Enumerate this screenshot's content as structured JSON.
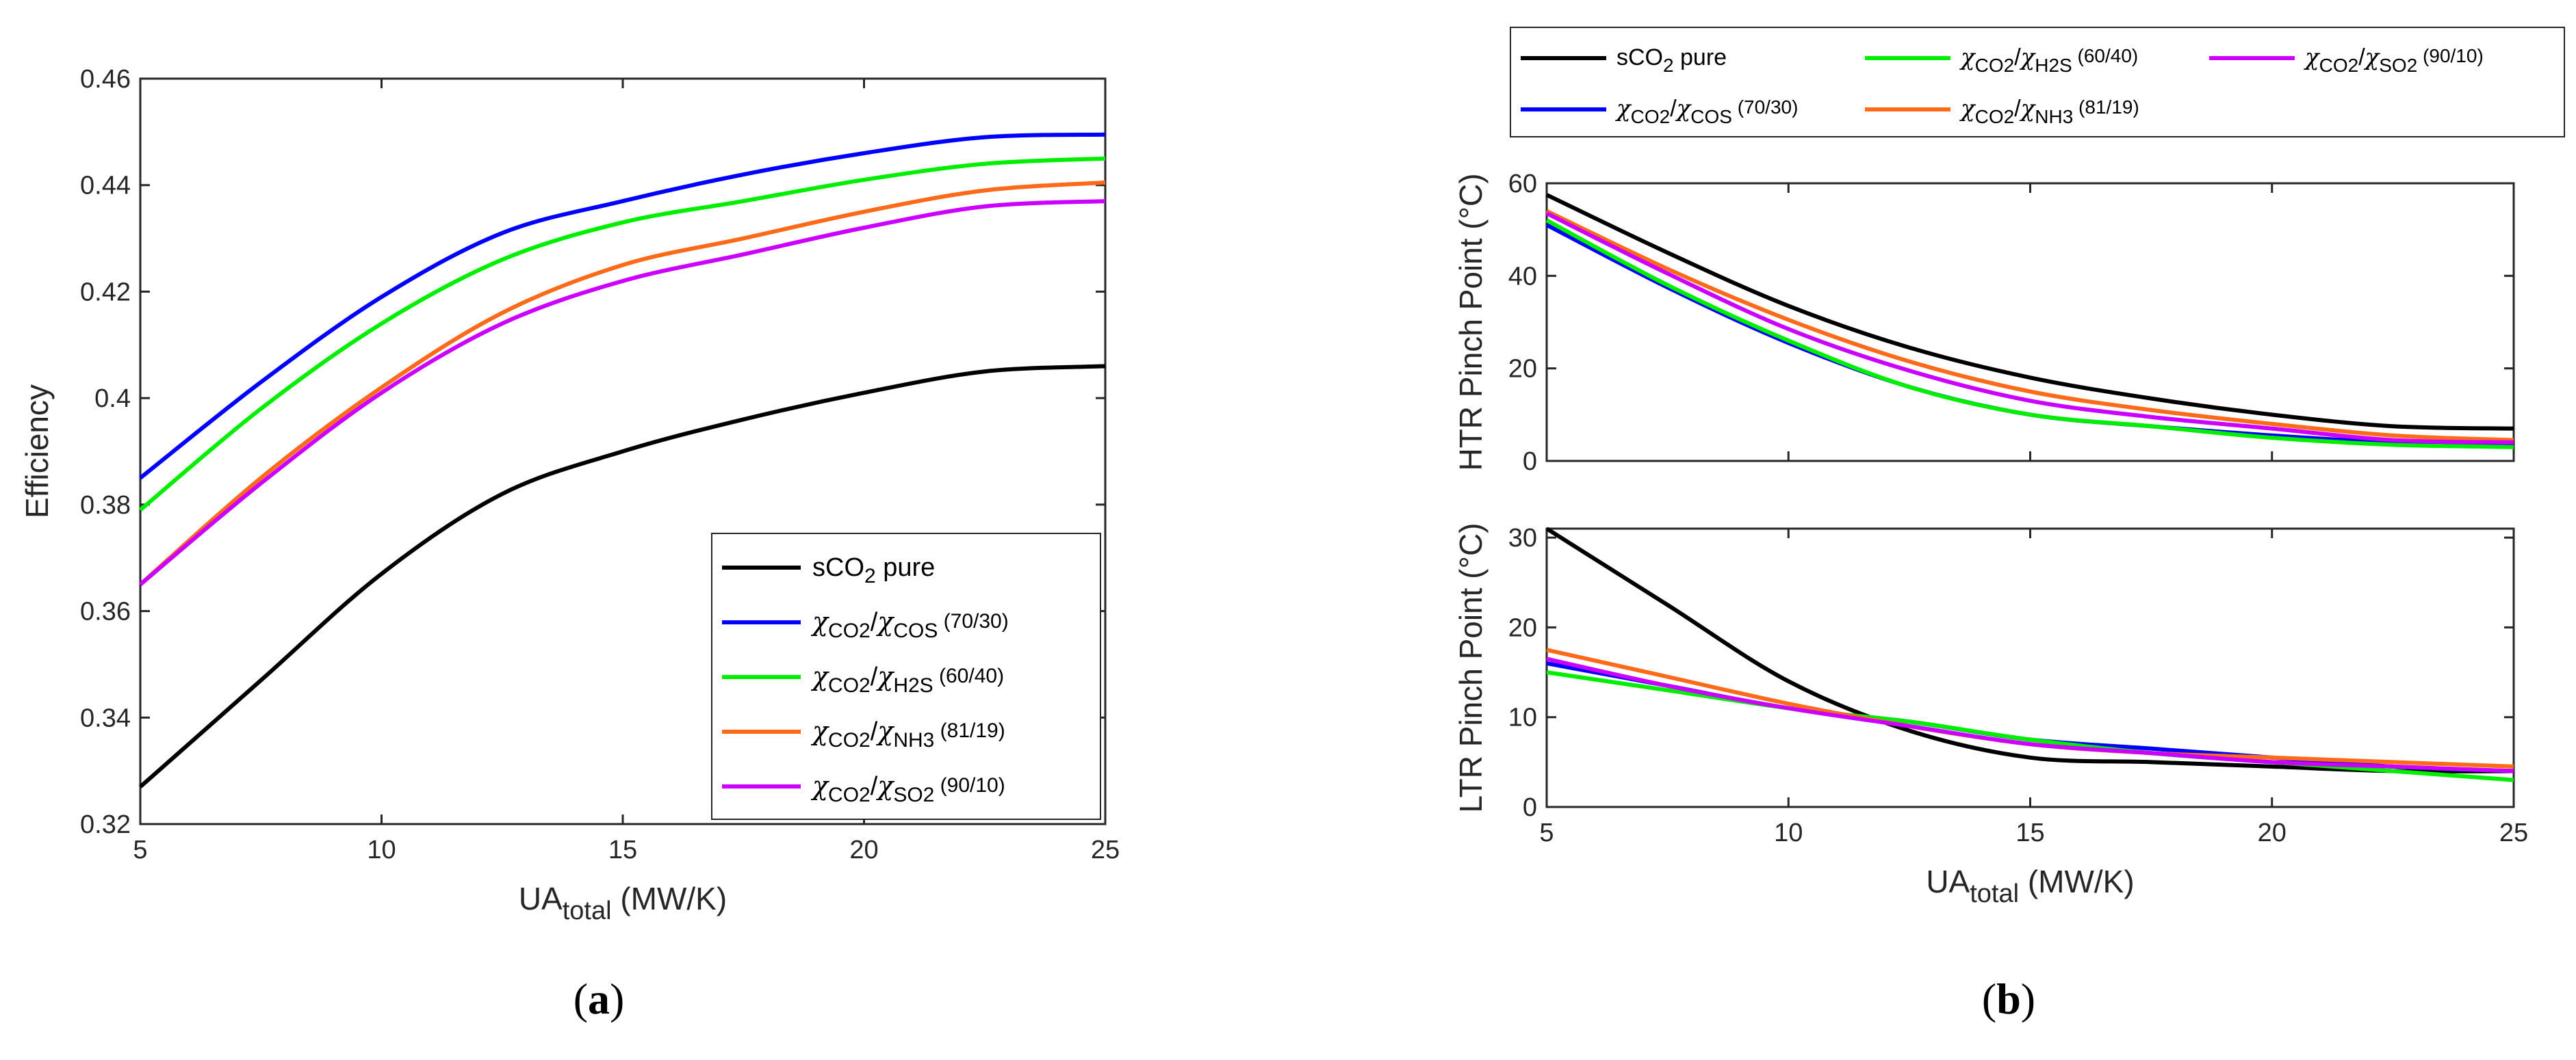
{
  "colors": {
    "sco2": "#000000",
    "cos": "#0000ff",
    "h2s": "#00ee00",
    "nh3": "#ff6a1a",
    "so2": "#cc00ff"
  },
  "chart_data": [
    {
      "id": "a",
      "type": "line",
      "panel_label": "a",
      "xlabel": {
        "main": "UA",
        "sub": "total",
        "unit": " (MW/K)"
      },
      "ylabel": "Efficiency",
      "xlim": [
        5,
        25
      ],
      "ylim": [
        0.32,
        0.46
      ],
      "xticks": [
        "5",
        "10",
        "15",
        "20",
        "25"
      ],
      "yticks": [
        "0.32",
        "0.34",
        "0.36",
        "0.38",
        "0.4",
        "0.42",
        "0.44",
        "0.46"
      ],
      "legend_position": "bottom-right",
      "x": [
        5,
        7.5,
        10,
        12.5,
        15,
        17.5,
        20,
        22.5,
        25
      ],
      "series": [
        {
          "key": "sco2",
          "values": [
            0.327,
            0.347,
            0.367,
            0.382,
            0.39,
            0.396,
            0.401,
            0.405,
            0.406
          ]
        },
        {
          "key": "cos",
          "values": [
            0.385,
            0.403,
            0.419,
            0.431,
            0.437,
            0.442,
            0.446,
            0.449,
            0.4495
          ]
        },
        {
          "key": "h2s",
          "values": [
            0.379,
            0.398,
            0.414,
            0.426,
            0.433,
            0.437,
            0.441,
            0.444,
            0.445
          ]
        },
        {
          "key": "nh3",
          "values": [
            0.365,
            0.385,
            0.402,
            0.416,
            0.425,
            0.43,
            0.435,
            0.439,
            0.4405
          ]
        },
        {
          "key": "so2",
          "values": [
            0.365,
            0.384,
            0.401,
            0.414,
            0.422,
            0.427,
            0.432,
            0.436,
            0.437
          ]
        }
      ]
    },
    {
      "id": "b_top",
      "type": "line",
      "ylabel": "HTR Pinch Point (°C)",
      "xlim": [
        5,
        25
      ],
      "ylim": [
        0,
        60
      ],
      "xticks": [
        "5",
        "10",
        "15",
        "20",
        "25"
      ],
      "yticks": [
        "0",
        "20",
        "40",
        "60"
      ],
      "x": [
        5,
        7.5,
        10,
        12.5,
        15,
        17.5,
        20,
        22.5,
        25
      ],
      "series": [
        {
          "key": "sco2",
          "values": [
            57.5,
            45,
            33.5,
            24.5,
            18,
            13.5,
            10,
            7.5,
            7
          ]
        },
        {
          "key": "cos",
          "values": [
            51,
            37.5,
            25.5,
            16,
            10,
            7.5,
            5.5,
            4,
            3.5
          ]
        },
        {
          "key": "h2s",
          "values": [
            52,
            38,
            26,
            16,
            10,
            7.5,
            5,
            3.5,
            3
          ]
        },
        {
          "key": "nh3",
          "values": [
            54,
            41.5,
            30.5,
            21.5,
            15,
            11,
            8,
            5.5,
            4.5
          ]
        },
        {
          "key": "so2",
          "values": [
            53.5,
            40.5,
            28.5,
            19.5,
            13,
            9.5,
            7,
            4.5,
            4
          ]
        }
      ]
    },
    {
      "id": "b_bottom",
      "type": "line",
      "panel_label": "b",
      "ylabel": "LTR Pinch Point (°C)",
      "xlabel": {
        "main": "UA",
        "sub": "total",
        "unit": " (MW/K)"
      },
      "xlim": [
        5,
        25
      ],
      "ylim": [
        0,
        31
      ],
      "xticks": [
        "5",
        "10",
        "15",
        "20",
        "25"
      ],
      "yticks": [
        "0",
        "10",
        "20",
        "30"
      ],
      "x": [
        5,
        7.5,
        10,
        12.5,
        15,
        17.5,
        20,
        22.5,
        25
      ],
      "series": [
        {
          "key": "sco2",
          "values": [
            31,
            22.5,
            14,
            8.5,
            5.5,
            5,
            4.5,
            4,
            4
          ]
        },
        {
          "key": "cos",
          "values": [
            16,
            13.5,
            11,
            9.5,
            7.5,
            6.5,
            5.5,
            4.5,
            4
          ]
        },
        {
          "key": "h2s",
          "values": [
            15,
            13,
            11,
            9.5,
            7.5,
            6,
            5,
            4,
            3
          ]
        },
        {
          "key": "nh3",
          "values": [
            17.5,
            14.5,
            11.5,
            9,
            7,
            6,
            5.5,
            5,
            4.5
          ]
        },
        {
          "key": "so2",
          "values": [
            16.5,
            13.5,
            11,
            9,
            7,
            6,
            5,
            4.5,
            4
          ]
        }
      ]
    }
  ],
  "legend": {
    "sco2": {
      "pre": "sCO",
      "sub1": "2",
      "post": " pure"
    },
    "cos": {
      "chi": "χ",
      "sub1": "CO2",
      "slash": "/",
      "chi2": "χ",
      "sub2": "COS",
      "ratio": " (70/30)"
    },
    "h2s": {
      "chi": "χ",
      "sub1": "CO2",
      "slash": "/",
      "chi2": "χ",
      "sub2": "H2S",
      "ratio": " (60/40)"
    },
    "nh3": {
      "chi": "χ",
      "sub1": "CO2",
      "slash": "/",
      "chi2": "χ",
      "sub2": "NH3",
      "ratio": " (81/19)"
    },
    "so2": {
      "chi": "χ",
      "sub1": "CO2",
      "slash": "/",
      "chi2": "χ",
      "sub2": "SO2",
      "ratio": " (90/10)"
    }
  }
}
